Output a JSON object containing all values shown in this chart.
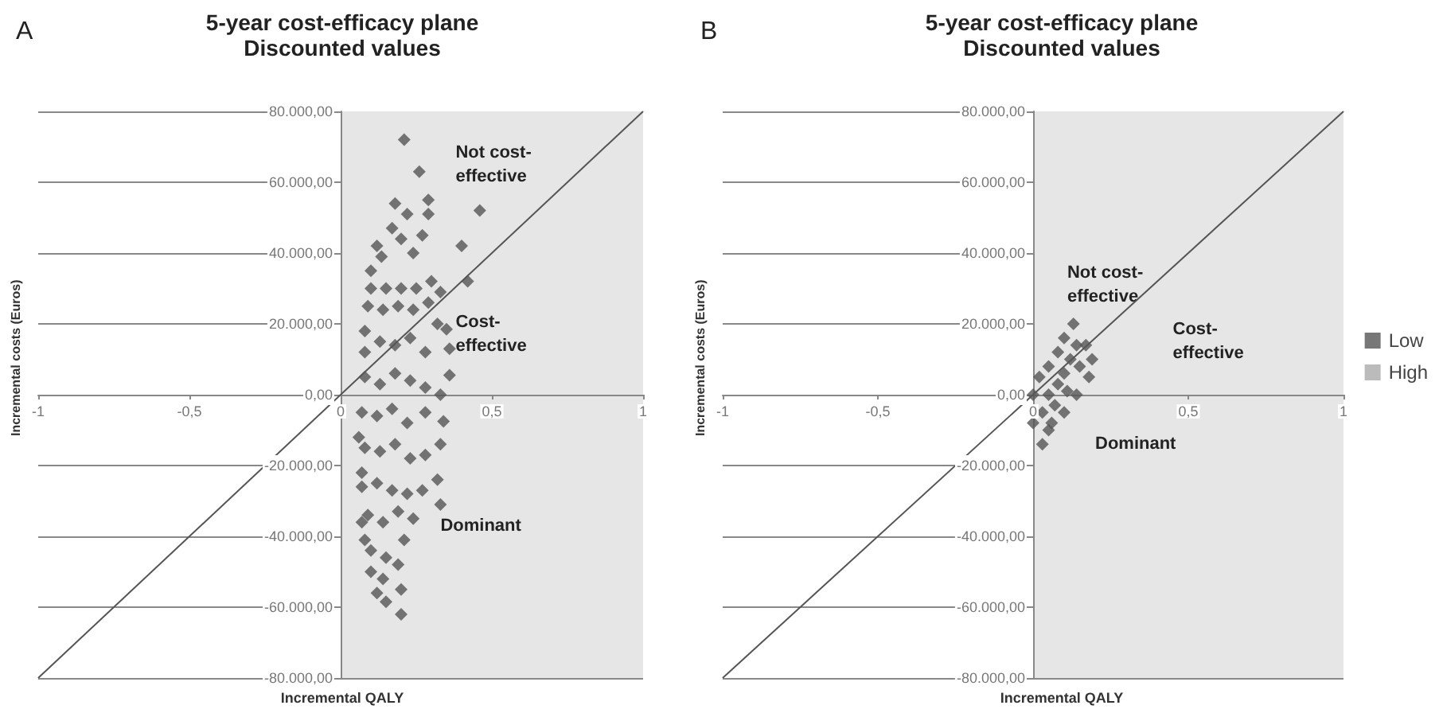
{
  "chart_data": [
    {
      "type": "scatter",
      "title": "5-year cost-efficacy plane",
      "subtitle": "Discounted values",
      "xlabel": "Incremental QALY",
      "ylabel": "Incremental costs (Euros)",
      "annotations": [
        "A",
        "Not cost-effective",
        "Cost-effective",
        "Dominant"
      ],
      "xlim": [
        -1,
        1
      ],
      "ylim": [
        -80000,
        80000
      ],
      "xticks": [
        {
          "value": -1,
          "label": "-1"
        },
        {
          "value": -0.5,
          "label": "-0,5"
        },
        {
          "value": 0,
          "label": "0"
        },
        {
          "value": 0.5,
          "label": "0,5"
        },
        {
          "value": 1,
          "label": "1"
        }
      ],
      "yticks": [
        {
          "value": -80000,
          "label": "-80.000,00"
        },
        {
          "value": -60000,
          "label": "-60.000,00"
        },
        {
          "value": -40000,
          "label": "-40.000,00"
        },
        {
          "value": -20000,
          "label": "-20.000,00"
        },
        {
          "value": 0,
          "label": "0,00"
        },
        {
          "value": 20000,
          "label": "20.000,00"
        },
        {
          "value": 40000,
          "label": "40.000,00"
        },
        {
          "value": 60000,
          "label": "60.000,00"
        },
        {
          "value": 80000,
          "label": "80.000,00"
        }
      ],
      "grid": "y",
      "marker": "diamond",
      "legend": false,
      "bands": [
        {
          "axis": "x",
          "from": 0,
          "to": 1,
          "color": "#e6e6e6"
        }
      ],
      "series": [
        {
          "type": "line",
          "color": "#555555",
          "marker": "none",
          "x": [
            -1,
            1
          ],
          "values": [
            -80000,
            80000
          ]
        },
        {
          "color": "#555555",
          "x": [
            0.21,
            0.26,
            0.46,
            0.29,
            0.18,
            0.22,
            0.29,
            0.4,
            0.42,
            0.33,
            0.135,
            0.1,
            0.08,
            0.35,
            0.36,
            0.36,
            0.34,
            0.33,
            0.32,
            0.33,
            0.27,
            0.21,
            0.2,
            0.2,
            0.15,
            0.12,
            0.1,
            0.08,
            0.07,
            0.07,
            0.06,
            0.1,
            0.15,
            0.2,
            0.25,
            0.3,
            0.12,
            0.2,
            0.27,
            0.17,
            0.24,
            0.09,
            0.14,
            0.19,
            0.24,
            0.29,
            0.08,
            0.13,
            0.18,
            0.23,
            0.28,
            0.32,
            0.08,
            0.13,
            0.18,
            0.23,
            0.28,
            0.33,
            0.07,
            0.12,
            0.17,
            0.22,
            0.28,
            0.08,
            0.13,
            0.18,
            0.23,
            0.28,
            0.07,
            0.12,
            0.17,
            0.22,
            0.09,
            0.14,
            0.19,
            0.24,
            0.1,
            0.15,
            0.19,
            0.14
          ],
          "values": [
            72000,
            63000,
            52000,
            55000,
            54000,
            51000,
            51000,
            42000,
            32000,
            29000,
            39000,
            35000,
            18000,
            18500,
            13000,
            5500,
            -7500,
            -14000,
            -24000,
            -31000,
            -27000,
            -41000,
            -55000,
            -62000,
            -58500,
            -56000,
            -50000,
            -41000,
            -36000,
            -22000,
            -12000,
            30000,
            30000,
            30000,
            30000,
            32000,
            42000,
            44000,
            45000,
            47000,
            40000,
            25000,
            24000,
            25000,
            24000,
            26000,
            12000,
            15000,
            14000,
            16000,
            12000,
            20000,
            5000,
            3000,
            6000,
            4000,
            2000,
            0,
            -5000,
            -6000,
            -4000,
            -8000,
            -5000,
            -15000,
            -16000,
            -14000,
            -18000,
            -17000,
            -26000,
            -25000,
            -27000,
            -28000,
            -34000,
            -36000,
            -33000,
            -35000,
            -44000,
            -46000,
            -48000,
            -52000
          ]
        }
      ]
    },
    {
      "type": "scatter",
      "title": "5-year cost-efficacy plane",
      "subtitle": "Discounted values",
      "xlabel": "Incremental QALY",
      "ylabel": "Incremental costs (Euros)",
      "annotations": [
        "B",
        "Not cost-effective",
        "Cost-effective",
        "Dominant"
      ],
      "xlim": [
        -1,
        1
      ],
      "ylim": [
        -80000,
        80000
      ],
      "xticks": [
        {
          "value": -1,
          "label": "-1"
        },
        {
          "value": -0.5,
          "label": "-0,5"
        },
        {
          "value": 0,
          "label": "0"
        },
        {
          "value": 0.5,
          "label": "0,5"
        },
        {
          "value": 1,
          "label": "1"
        }
      ],
      "yticks": [
        {
          "value": -80000,
          "label": "-80.000,00"
        },
        {
          "value": -60000,
          "label": "-60.000,00"
        },
        {
          "value": -40000,
          "label": "-40.000,00"
        },
        {
          "value": -20000,
          "label": "-20.000,00"
        },
        {
          "value": 0,
          "label": "0,00"
        },
        {
          "value": 20000,
          "label": "20.000,00"
        },
        {
          "value": 40000,
          "label": "40.000,00"
        },
        {
          "value": 60000,
          "label": "60.000,00"
        },
        {
          "value": 80000,
          "label": "80.000,00"
        }
      ],
      "grid": "y",
      "marker": "diamond",
      "legend": "right",
      "bands": [
        {
          "axis": "x",
          "from": 0,
          "to": 1,
          "color": "#e6e6e6"
        }
      ],
      "series": [
        {
          "type": "line",
          "color": "#555555",
          "marker": "none",
          "x": [
            -1,
            1
          ],
          "values": [
            -80000,
            80000
          ]
        },
        {
          "name": "Low",
          "color": "#555555",
          "x": [
            0.13,
            0.17,
            0.19,
            0.18,
            0.14,
            0.1,
            0.05,
            0.03,
            0.0,
            0.0,
            0.02,
            0.05,
            0.08,
            0.1,
            0.05,
            0.08,
            0.1,
            0.12,
            0.14,
            0.07,
            0.03,
            0.15,
            0.06,
            0.11
          ],
          "values": [
            20000,
            14000,
            10000,
            5000,
            0,
            -5000,
            -10000,
            -14000,
            -8000,
            0,
            5000,
            8000,
            12000,
            16000,
            0,
            3000,
            6000,
            10000,
            14000,
            -3000,
            -5000,
            8000,
            -8000,
            1000
          ]
        },
        {
          "name": "High",
          "color": "#aaaaaa"
        }
      ]
    }
  ]
}
